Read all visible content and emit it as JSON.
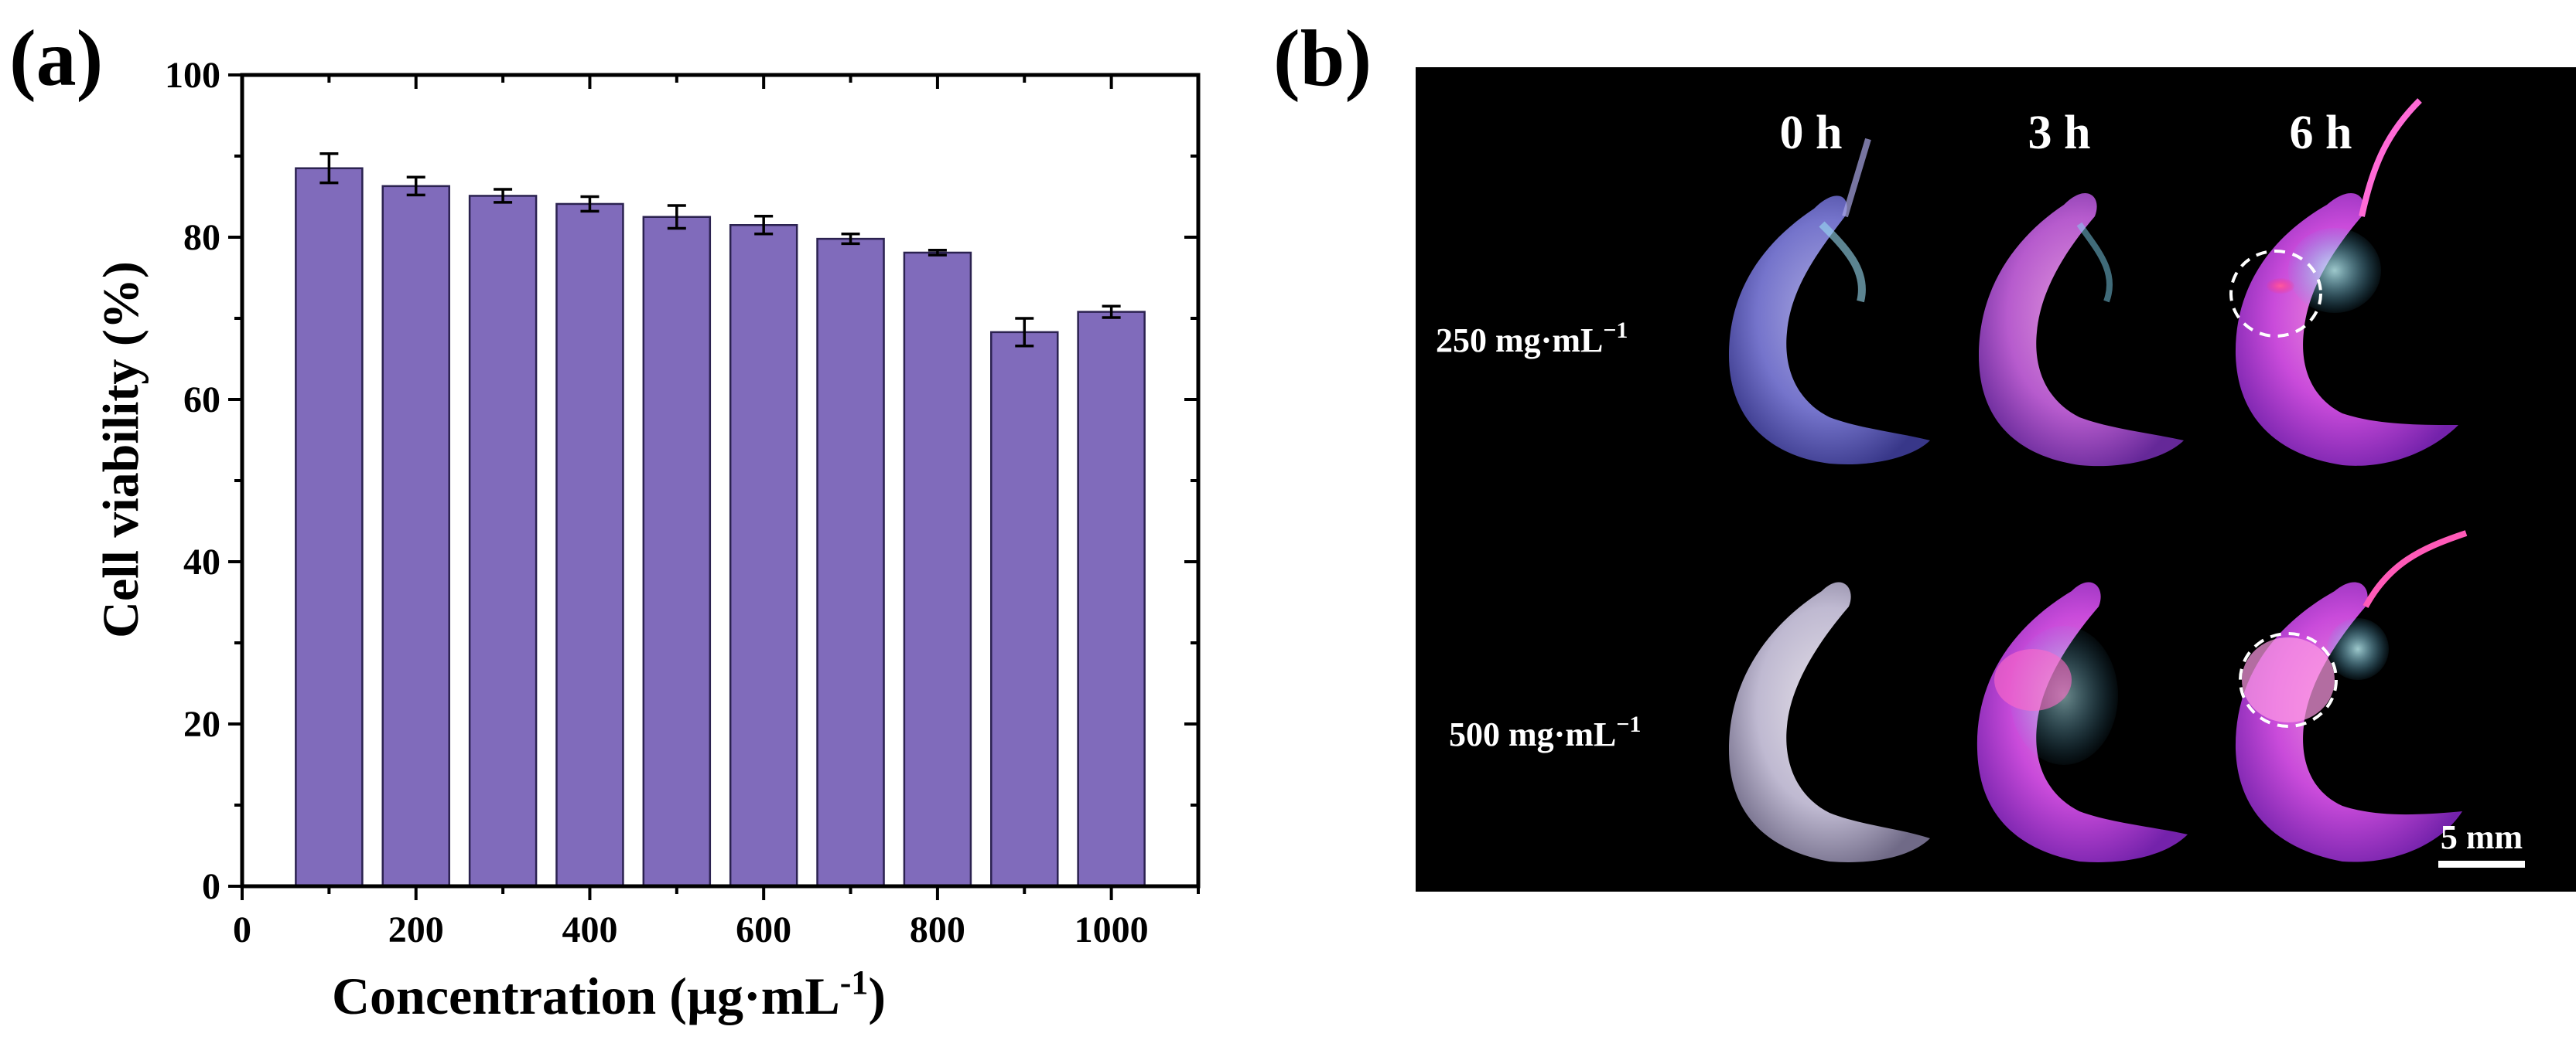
{
  "panel_a": {
    "label": "(a)",
    "chart_data": {
      "type": "bar",
      "title": "",
      "xlabel": "Concentration (µg·mL",
      "xlabel_sup": "-1",
      "xlabel_end": ")",
      "ylabel": "Cell viability (%)",
      "categories": [
        100,
        200,
        300,
        400,
        500,
        600,
        700,
        800,
        900,
        1000
      ],
      "values": [
        88.5,
        86.3,
        85.1,
        84.1,
        82.5,
        81.5,
        79.8,
        78.1,
        68.3,
        70.8
      ],
      "errors": [
        1.8,
        1.1,
        0.8,
        0.9,
        1.4,
        1.1,
        0.6,
        0.3,
        1.7,
        0.7
      ],
      "xlim": [
        0,
        1100
      ],
      "ylim": [
        0,
        100
      ],
      "xticks": [
        0,
        200,
        400,
        600,
        800,
        1000
      ],
      "yticks": [
        0,
        20,
        40,
        60,
        80,
        100
      ],
      "bar_color": "#806bbb",
      "bar_edge": "#2b2250"
    }
  },
  "panel_b": {
    "label": "(b)",
    "time_labels": [
      "0 h",
      "3 h",
      "6 h"
    ],
    "rows": [
      {
        "label": "250 mg·mL",
        "sup": "−1"
      },
      {
        "label": "500 mg·mL",
        "sup": "−1"
      }
    ],
    "scale_bar": "5 mm",
    "background": "#000000"
  }
}
